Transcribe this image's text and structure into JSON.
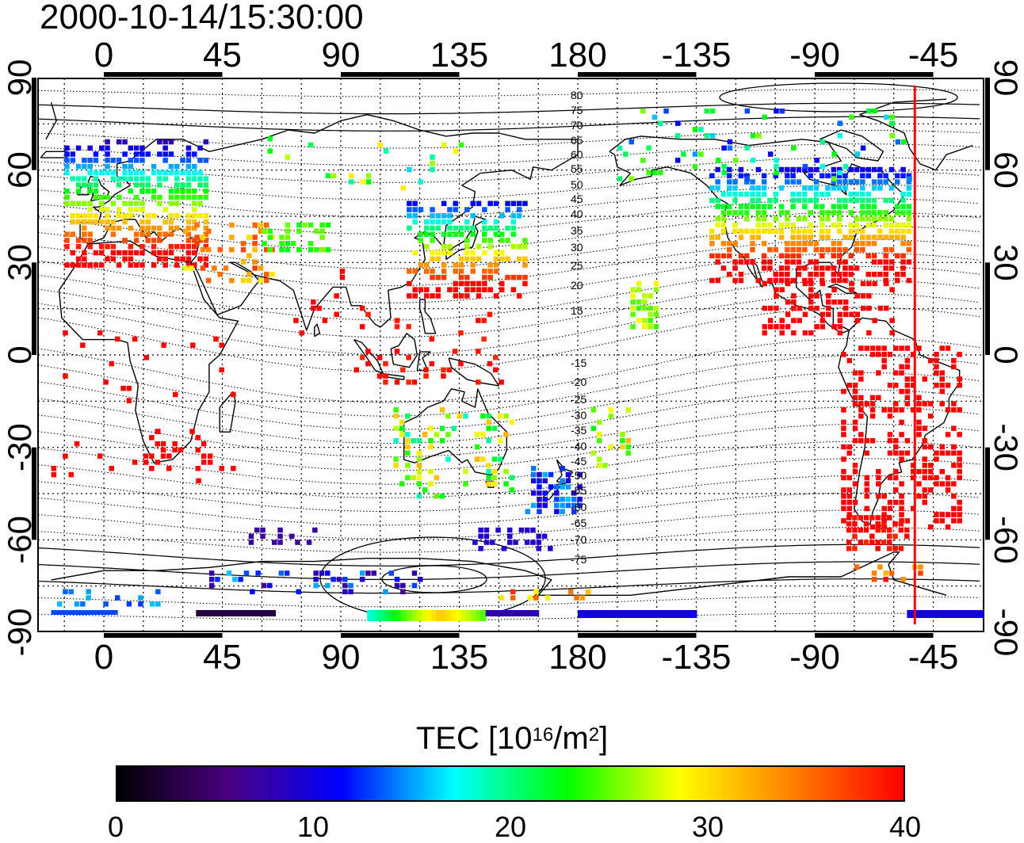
{
  "title": "2000-10-14/15:30:00",
  "map": {
    "top_lon_labels": [
      "0",
      "45",
      "90",
      "135",
      "180",
      "-135",
      "-90",
      "-45"
    ],
    "bottom_lon_labels": [
      "0",
      "45",
      "90",
      "135",
      "180",
      "-135",
      "-90",
      "-45"
    ],
    "lat_labels": [
      "90",
      "60",
      "30",
      "0",
      "-30",
      "-60",
      "-90"
    ],
    "contour_labels": [
      "80",
      "75",
      "70",
      "65",
      "60",
      "55",
      "50",
      "45",
      "40",
      "35",
      "30",
      "25",
      "20",
      "15",
      "-15",
      "-20",
      "-25",
      "-30",
      "-35",
      "-40",
      "-45",
      "-50",
      "-55",
      "-60",
      "-65",
      "-70",
      "-75"
    ],
    "meridian_line_lon": -52,
    "meridian_line_color": "#ff0000",
    "land_color": "#000000",
    "grid_style": "dotted"
  },
  "colorbar": {
    "label_prefix": "TEC  [10",
    "label_exp1": "16",
    "label_mid": "/m",
    "label_exp2": "2",
    "label_suffix": "]",
    "ticks": [
      "0",
      "10",
      "20",
      "30",
      "40"
    ],
    "range": [
      0,
      40
    ],
    "colors": [
      "#000000",
      "#4b0082",
      "#0000ff",
      "#00ffff",
      "#00ff00",
      "#ffff00",
      "#ff8000",
      "#ff0000"
    ]
  }
}
